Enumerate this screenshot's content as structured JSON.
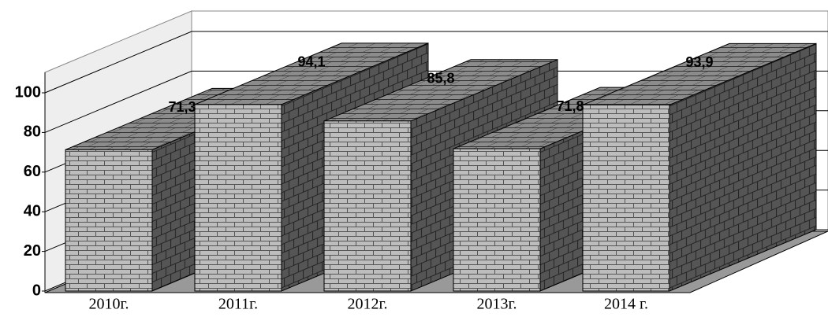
{
  "chart_data": {
    "type": "bar3d",
    "categories": [
      "2010г.",
      "2011г.",
      "2012г.",
      "2013г.",
      "2014 г."
    ],
    "values": [
      71.3,
      94.1,
      85.8,
      71.8,
      93.9
    ],
    "value_labels": [
      "71,3",
      "94,1",
      "85,8",
      "71,8",
      "93,9"
    ],
    "ylim": [
      0,
      100
    ],
    "yticks": [
      0,
      20,
      40,
      60,
      80,
      100
    ],
    "grid": true
  }
}
